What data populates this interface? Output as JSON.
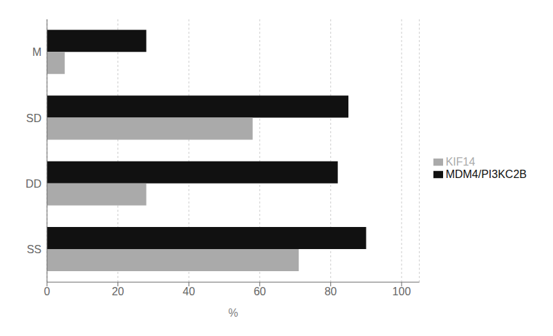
{
  "chart_data": {
    "type": "bar",
    "orientation": "horizontal",
    "categories": [
      "SS",
      "DD",
      "SD",
      "M"
    ],
    "series": [
      {
        "name": "MDM4/PI3KC2B",
        "color": "#111111",
        "values": [
          90,
          82,
          85,
          28
        ]
      },
      {
        "name": "KIF14",
        "color": "#aaaaaa",
        "values": [
          71,
          28,
          58,
          5
        ]
      }
    ],
    "xlabel": "%",
    "xlim": [
      0,
      105
    ],
    "xticks": [
      0,
      20,
      40,
      60,
      80,
      100
    ],
    "grid": true,
    "legend": "right"
  }
}
